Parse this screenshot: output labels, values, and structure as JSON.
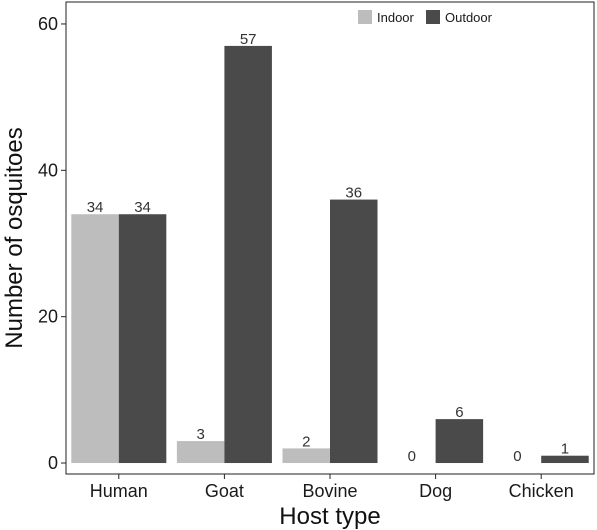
{
  "chart_data": {
    "type": "bar",
    "categories": [
      "Human",
      "Goat",
      "Bovine",
      "Dog",
      "Chicken"
    ],
    "series": [
      {
        "name": "Indoor",
        "values": [
          34,
          3,
          2,
          0,
          0
        ],
        "color": "#bdbdbd"
      },
      {
        "name": "Outdoor",
        "values": [
          34,
          57,
          36,
          6,
          1
        ],
        "color": "#4a4a4a"
      }
    ],
    "data_labels": [
      [
        "34",
        "3",
        "2",
        "0",
        "0"
      ],
      [
        "34",
        "57",
        "36",
        "6",
        "1"
      ]
    ],
    "yticks": [
      0,
      20,
      40,
      60
    ],
    "ylim": [
      -1.5,
      63
    ],
    "xlabel": "Host type",
    "ylabel": "Number of osquitoes",
    "legend_position": "top-right",
    "grid": false
  }
}
